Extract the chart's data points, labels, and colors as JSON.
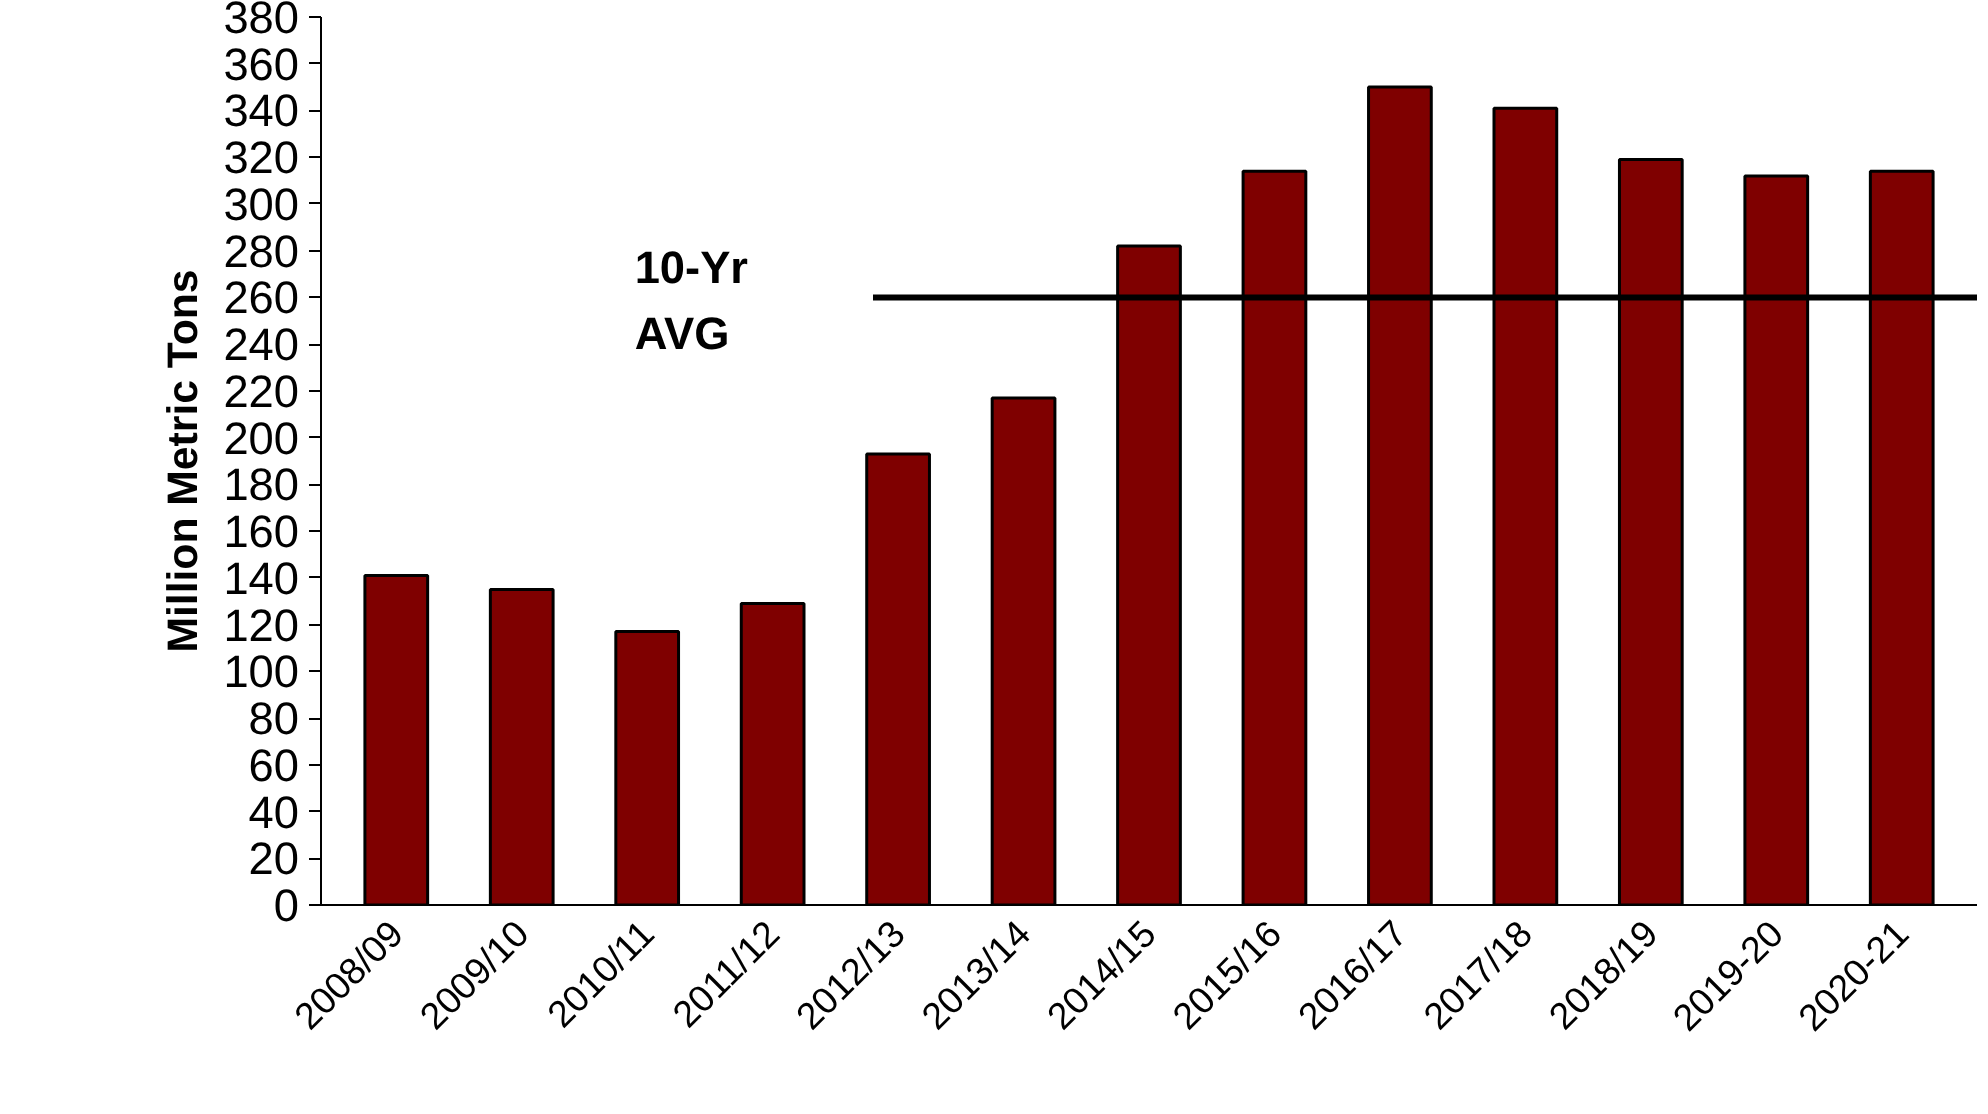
{
  "chart_data": {
    "type": "bar",
    "ylabel": "Million Metric Tons",
    "categories": [
      "2008/09",
      "2009/10",
      "2010/11",
      "2011/12",
      "2012/13",
      "2013/14",
      "2014/15",
      "2015/16",
      "2016/17",
      "2017/18",
      "2018/19",
      "2019-20",
      "2020-21"
    ],
    "values": [
      141,
      135,
      117,
      129,
      193,
      217,
      282,
      314,
      350,
      341,
      319,
      312,
      314
    ],
    "color": "#7f0000",
    "ylim": [
      0,
      380
    ],
    "yticks": [
      0,
      20,
      40,
      60,
      80,
      100,
      120,
      140,
      160,
      180,
      200,
      220,
      240,
      260,
      280,
      300,
      320,
      340,
      360,
      380
    ],
    "grid": false,
    "ref_lines": [
      {
        "axis": "y",
        "value": 260,
        "label": "10-Yr\nAVG",
        "color": "#000000"
      }
    ]
  }
}
